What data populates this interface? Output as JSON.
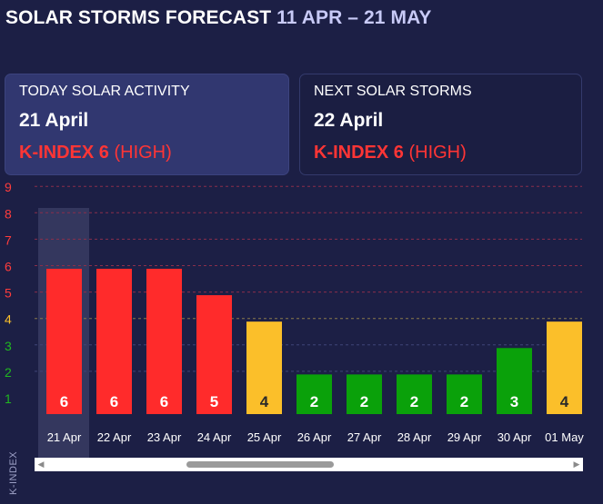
{
  "title": {
    "main": "SOLAR STORMS FORECAST",
    "range": "11 APR – 21 MAY"
  },
  "cards": {
    "today": {
      "label": "TODAY SOLAR ACTIVITY",
      "date": "21 April",
      "k_prefix": "K-INDEX 6",
      "k_level": " (HIGH)"
    },
    "next": {
      "label": "NEXT SOLAR STORMS",
      "date": "22 April",
      "k_prefix": "K-INDEX 6",
      "k_level": " (HIGH)"
    }
  },
  "colors": {
    "high": "#ff2b2b",
    "moderate": "#fbbf2a",
    "low": "#0aa10a",
    "ytick_high": "#ff3c3c",
    "ytick_mid": "#fbbf2a",
    "ytick_low": "#20b820",
    "grid_high": "#8a2f4b",
    "grid_mid": "#8a7a4b",
    "grid_low": "#3f4578"
  },
  "chart_data": {
    "type": "bar",
    "categories": [
      "21 Apr",
      "22 Apr",
      "23 Apr",
      "24 Apr",
      "25 Apr",
      "26 Apr",
      "27 Apr",
      "28 Apr",
      "29 Apr",
      "30 Apr",
      "01 May"
    ],
    "values": [
      6,
      6,
      6,
      5,
      4,
      2,
      2,
      2,
      2,
      3,
      4
    ],
    "value_labels": [
      "6",
      "6",
      "6",
      "5",
      "4",
      "2",
      "2",
      "2",
      "2",
      "3",
      "4"
    ],
    "levels": [
      "high",
      "high",
      "high",
      "high",
      "moderate",
      "low",
      "low",
      "low",
      "low",
      "low",
      "moderate"
    ],
    "yticks": [
      "1",
      "2",
      "3",
      "4",
      "5",
      "6",
      "7",
      "8",
      "9"
    ],
    "ylabel": "K-INDEX",
    "ylim": [
      1,
      9
    ],
    "highlighted_category": "21 Apr",
    "grid": true
  }
}
